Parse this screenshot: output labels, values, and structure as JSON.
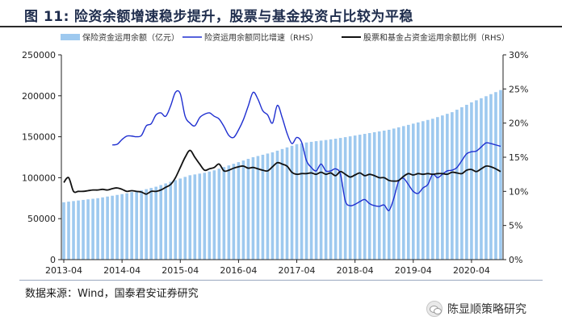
{
  "figure": {
    "label": "图 11:",
    "title": "险资余额增速稳步提升，股票与基金投资占比较为平稳"
  },
  "source": "数据来源：Wind，国泰君安证券研究",
  "watermark": "陈显顺策略研究",
  "colors": {
    "bar": "#9ec9ef",
    "line_growth": "#1f2fd0",
    "line_ratio": "#111111",
    "axis": "#222222"
  },
  "chart_data": {
    "type": "bar+line",
    "legend_position": "top",
    "grid": false,
    "x_tick_labels": [
      "2013-04",
      "2014-04",
      "2015-04",
      "2016-04",
      "2017-04",
      "2018-04",
      "2019-04",
      "2020-04"
    ],
    "x_range": [
      "2013-04",
      "2020-10"
    ],
    "y_left": {
      "ylim": [
        0,
        250000
      ],
      "ticks": [
        0,
        50000,
        100000,
        150000,
        200000,
        250000
      ],
      "tick_labels": [
        "0",
        "50000",
        "100000",
        "150000",
        "200000",
        "250000"
      ]
    },
    "y_right": {
      "ylim": [
        0,
        30
      ],
      "ticks": [
        0,
        5,
        10,
        15,
        20,
        25,
        30
      ],
      "tick_labels": [
        "0%",
        "5%",
        "10%",
        "15%",
        "20%",
        "25%",
        "30%"
      ]
    },
    "series": [
      {
        "name": "保险资金运用余额（亿元）",
        "type": "bar",
        "axis": "left",
        "points": [
          [
            "2013-04",
            70000
          ],
          [
            "2013-05",
            70800
          ],
          [
            "2013-06",
            71500
          ],
          [
            "2013-07",
            72200
          ],
          [
            "2013-08",
            72900
          ],
          [
            "2013-09",
            73600
          ],
          [
            "2013-10",
            74300
          ],
          [
            "2013-11",
            75000
          ],
          [
            "2013-12",
            76000
          ],
          [
            "2014-01",
            77000
          ],
          [
            "2014-02",
            78000
          ],
          [
            "2014-03",
            79000
          ],
          [
            "2014-04",
            80000
          ],
          [
            "2014-05",
            81000
          ],
          [
            "2014-06",
            82500
          ],
          [
            "2014-07",
            83500
          ],
          [
            "2014-08",
            84500
          ],
          [
            "2014-09",
            86000
          ],
          [
            "2014-10",
            87500
          ],
          [
            "2014-11",
            89000
          ],
          [
            "2014-12",
            91000
          ],
          [
            "2015-01",
            93000
          ],
          [
            "2015-02",
            95000
          ],
          [
            "2015-03",
            97000
          ],
          [
            "2015-04",
            99000
          ],
          [
            "2015-05",
            101000
          ],
          [
            "2015-06",
            103000
          ],
          [
            "2015-07",
            104000
          ],
          [
            "2015-08",
            105000
          ],
          [
            "2015-09",
            106000
          ],
          [
            "2015-10",
            107500
          ],
          [
            "2015-11",
            109000
          ],
          [
            "2015-12",
            111000
          ],
          [
            "2016-01",
            113000
          ],
          [
            "2016-02",
            115000
          ],
          [
            "2016-03",
            117000
          ],
          [
            "2016-04",
            119000
          ],
          [
            "2016-05",
            121000
          ],
          [
            "2016-06",
            123000
          ],
          [
            "2016-07",
            125000
          ],
          [
            "2016-08",
            126500
          ],
          [
            "2016-09",
            128000
          ],
          [
            "2016-10",
            129500
          ],
          [
            "2016-11",
            131000
          ],
          [
            "2016-12",
            133000
          ],
          [
            "2017-01",
            135000
          ],
          [
            "2017-02",
            137000
          ],
          [
            "2017-03",
            139000
          ],
          [
            "2017-04",
            141000
          ],
          [
            "2017-05",
            142000
          ],
          [
            "2017-06",
            143000
          ],
          [
            "2017-07",
            143800
          ],
          [
            "2017-08",
            144600
          ],
          [
            "2017-09",
            145300
          ],
          [
            "2017-10",
            146000
          ],
          [
            "2017-11",
            146800
          ],
          [
            "2017-12",
            147600
          ],
          [
            "2018-01",
            148500
          ],
          [
            "2018-02",
            149500
          ],
          [
            "2018-03",
            150500
          ],
          [
            "2018-04",
            151500
          ],
          [
            "2018-05",
            152500
          ],
          [
            "2018-06",
            153500
          ],
          [
            "2018-07",
            154500
          ],
          [
            "2018-08",
            155500
          ],
          [
            "2018-09",
            156500
          ],
          [
            "2018-10",
            157500
          ],
          [
            "2018-11",
            158500
          ],
          [
            "2018-12",
            160000
          ],
          [
            "2019-01",
            161500
          ],
          [
            "2019-02",
            163000
          ],
          [
            "2019-03",
            164500
          ],
          [
            "2019-04",
            166000
          ],
          [
            "2019-05",
            167500
          ],
          [
            "2019-06",
            169000
          ],
          [
            "2019-07",
            170500
          ],
          [
            "2019-08",
            172000
          ],
          [
            "2019-09",
            174000
          ],
          [
            "2019-10",
            176000
          ],
          [
            "2019-11",
            178000
          ],
          [
            "2019-12",
            180000
          ],
          [
            "2020-01",
            183000
          ],
          [
            "2020-02",
            186000
          ],
          [
            "2020-03",
            189000
          ],
          [
            "2020-04",
            192000
          ],
          [
            "2020-05",
            194500
          ],
          [
            "2020-06",
            197000
          ],
          [
            "2020-07",
            199500
          ],
          [
            "2020-08",
            202000
          ],
          [
            "2020-09",
            204500
          ],
          [
            "2020-10",
            207000
          ]
        ]
      },
      {
        "name": "险资运用余额同比增速（RHS）",
        "type": "line",
        "axis": "right",
        "points": [
          [
            "2014-02",
            16.8
          ],
          [
            "2014-03",
            16.9
          ],
          [
            "2014-04",
            17.6
          ],
          [
            "2014-05",
            18.1
          ],
          [
            "2014-06",
            18.1
          ],
          [
            "2014-07",
            18.0
          ],
          [
            "2014-08",
            18.2
          ],
          [
            "2014-09",
            19.6
          ],
          [
            "2014-10",
            19.9
          ],
          [
            "2014-11",
            21.2
          ],
          [
            "2014-12",
            21.5
          ],
          [
            "2015-01",
            21.0
          ],
          [
            "2015-02",
            22.5
          ],
          [
            "2015-03",
            24.5
          ],
          [
            "2015-04",
            24.3
          ],
          [
            "2015-05",
            21.0
          ],
          [
            "2015-06",
            20.0
          ],
          [
            "2015-07",
            19.6
          ],
          [
            "2015-08",
            20.8
          ],
          [
            "2015-09",
            21.3
          ],
          [
            "2015-10",
            21.5
          ],
          [
            "2015-11",
            21.0
          ],
          [
            "2015-12",
            20.6
          ],
          [
            "2016-01",
            19.5
          ],
          [
            "2016-02",
            18.2
          ],
          [
            "2016-03",
            17.9
          ],
          [
            "2016-04",
            19.0
          ],
          [
            "2016-05",
            20.5
          ],
          [
            "2016-06",
            22.5
          ],
          [
            "2016-07",
            24.5
          ],
          [
            "2016-08",
            23.5
          ],
          [
            "2016-09",
            21.8
          ],
          [
            "2016-10",
            21.2
          ],
          [
            "2016-11",
            20.0
          ],
          [
            "2016-12",
            22.6
          ],
          [
            "2017-01",
            20.8
          ],
          [
            "2017-02",
            18.5
          ],
          [
            "2017-03",
            17.0
          ],
          [
            "2017-04",
            17.9
          ],
          [
            "2017-05",
            17.2
          ],
          [
            "2017-06",
            14.5
          ],
          [
            "2017-07",
            13.5
          ],
          [
            "2017-08",
            13.0
          ],
          [
            "2017-09",
            14.0
          ],
          [
            "2017-10",
            13.0
          ],
          [
            "2017-11",
            13.0
          ],
          [
            "2017-12",
            13.3
          ],
          [
            "2018-01",
            12.5
          ],
          [
            "2018-02",
            8.6
          ],
          [
            "2018-03",
            7.9
          ],
          [
            "2018-04",
            8.1
          ],
          [
            "2018-05",
            8.5
          ],
          [
            "2018-06",
            8.8
          ],
          [
            "2018-07",
            8.2
          ],
          [
            "2018-08",
            7.9
          ],
          [
            "2018-09",
            7.8
          ],
          [
            "2018-10",
            8.0
          ],
          [
            "2018-11",
            7.2
          ],
          [
            "2018-12",
            9.0
          ],
          [
            "2019-01",
            11.5
          ],
          [
            "2019-02",
            11.9
          ],
          [
            "2019-03",
            11.0
          ],
          [
            "2019-04",
            10.0
          ],
          [
            "2019-05",
            9.7
          ],
          [
            "2019-06",
            10.5
          ],
          [
            "2019-07",
            11.0
          ],
          [
            "2019-08",
            12.5
          ],
          [
            "2019-09",
            12.0
          ],
          [
            "2019-10",
            12.5
          ],
          [
            "2019-11",
            13.0
          ],
          [
            "2019-12",
            13.1
          ],
          [
            "2020-01",
            13.5
          ],
          [
            "2020-02",
            14.5
          ],
          [
            "2020-03",
            15.5
          ],
          [
            "2020-04",
            15.8
          ],
          [
            "2020-05",
            15.9
          ],
          [
            "2020-06",
            16.5
          ],
          [
            "2020-07",
            17.1
          ],
          [
            "2020-08",
            17.0
          ],
          [
            "2020-09",
            16.8
          ],
          [
            "2020-10",
            16.6
          ]
        ]
      },
      {
        "name": "股票和基金占资金运用余额比例（RHS）",
        "type": "line",
        "axis": "right",
        "points": [
          [
            "2013-04",
            11.3
          ],
          [
            "2013-05",
            12.0
          ],
          [
            "2013-06",
            10.0
          ],
          [
            "2013-07",
            10.0
          ],
          [
            "2013-08",
            10.0
          ],
          [
            "2013-09",
            10.1
          ],
          [
            "2013-10",
            10.2
          ],
          [
            "2013-11",
            10.2
          ],
          [
            "2013-12",
            10.3
          ],
          [
            "2014-01",
            10.2
          ],
          [
            "2014-02",
            10.4
          ],
          [
            "2014-03",
            10.5
          ],
          [
            "2014-04",
            10.3
          ],
          [
            "2014-05",
            10.0
          ],
          [
            "2014-06",
            10.1
          ],
          [
            "2014-07",
            10.0
          ],
          [
            "2014-08",
            9.9
          ],
          [
            "2014-09",
            9.6
          ],
          [
            "2014-10",
            10.0
          ],
          [
            "2014-11",
            10.0
          ],
          [
            "2014-12",
            10.2
          ],
          [
            "2015-01",
            10.6
          ],
          [
            "2015-02",
            11.0
          ],
          [
            "2015-03",
            12.0
          ],
          [
            "2015-04",
            13.5
          ],
          [
            "2015-05",
            15.0
          ],
          [
            "2015-06",
            16.0
          ],
          [
            "2015-07",
            15.0
          ],
          [
            "2015-08",
            14.0
          ],
          [
            "2015-09",
            13.1
          ],
          [
            "2015-10",
            13.3
          ],
          [
            "2015-11",
            13.5
          ],
          [
            "2015-12",
            14.0
          ],
          [
            "2016-01",
            13.0
          ],
          [
            "2016-02",
            13.1
          ],
          [
            "2016-03",
            13.4
          ],
          [
            "2016-04",
            13.6
          ],
          [
            "2016-05",
            13.7
          ],
          [
            "2016-06",
            13.4
          ],
          [
            "2016-07",
            13.5
          ],
          [
            "2016-08",
            13.3
          ],
          [
            "2016-09",
            13.1
          ],
          [
            "2016-10",
            13.0
          ],
          [
            "2016-11",
            13.6
          ],
          [
            "2016-12",
            14.2
          ],
          [
            "2017-01",
            14.0
          ],
          [
            "2017-02",
            13.7
          ],
          [
            "2017-03",
            12.8
          ],
          [
            "2017-04",
            12.5
          ],
          [
            "2017-05",
            12.6
          ],
          [
            "2017-06",
            12.6
          ],
          [
            "2017-07",
            12.7
          ],
          [
            "2017-08",
            12.5
          ],
          [
            "2017-09",
            12.8
          ],
          [
            "2017-10",
            12.5
          ],
          [
            "2017-11",
            12.7
          ],
          [
            "2017-12",
            12.3
          ],
          [
            "2018-01",
            12.9
          ],
          [
            "2018-02",
            12.5
          ],
          [
            "2018-03",
            12.1
          ],
          [
            "2018-04",
            12.4
          ],
          [
            "2018-05",
            12.7
          ],
          [
            "2018-06",
            12.3
          ],
          [
            "2018-07",
            12.5
          ],
          [
            "2018-08",
            12.3
          ],
          [
            "2018-09",
            12.0
          ],
          [
            "2018-10",
            12.0
          ],
          [
            "2018-11",
            11.6
          ],
          [
            "2018-12",
            11.5
          ],
          [
            "2019-01",
            11.6
          ],
          [
            "2019-02",
            12.2
          ],
          [
            "2019-03",
            12.6
          ],
          [
            "2019-04",
            12.4
          ],
          [
            "2019-05",
            12.6
          ],
          [
            "2019-06",
            12.5
          ],
          [
            "2019-07",
            12.6
          ],
          [
            "2019-08",
            12.5
          ],
          [
            "2019-09",
            12.6
          ],
          [
            "2019-10",
            12.6
          ],
          [
            "2019-11",
            12.5
          ],
          [
            "2019-12",
            12.8
          ],
          [
            "2020-01",
            12.7
          ],
          [
            "2020-02",
            12.6
          ],
          [
            "2020-03",
            13.1
          ],
          [
            "2020-04",
            13.2
          ],
          [
            "2020-05",
            12.9
          ],
          [
            "2020-06",
            13.3
          ],
          [
            "2020-07",
            13.7
          ],
          [
            "2020-08",
            13.6
          ],
          [
            "2020-09",
            13.3
          ],
          [
            "2020-10",
            12.9
          ]
        ]
      }
    ]
  }
}
